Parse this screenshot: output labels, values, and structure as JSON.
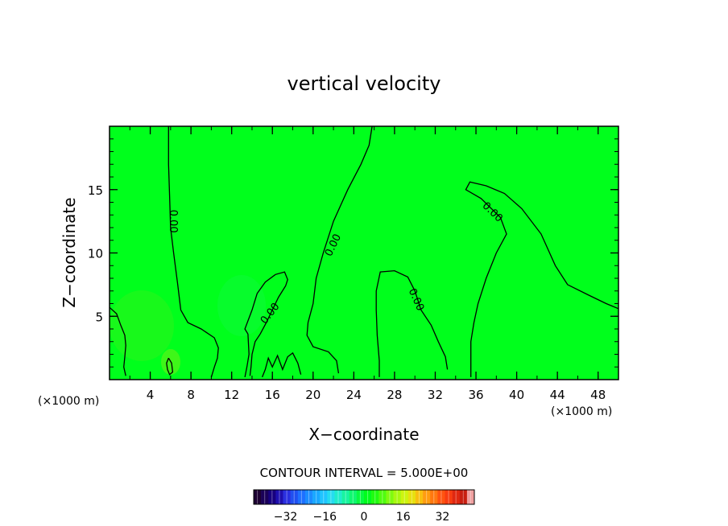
{
  "chart_data": {
    "type": "heatmap",
    "title": "vertical velocity",
    "xlabel": "X−coordinate",
    "ylabel": "Z−coordinate",
    "x_unit_left": "(×1000 m)",
    "x_unit_right": "(×1000 m)",
    "xlim": [
      0,
      50
    ],
    "ylim": [
      0,
      20
    ],
    "x_ticks": [
      4,
      8,
      12,
      16,
      20,
      24,
      28,
      32,
      36,
      40,
      44,
      48
    ],
    "y_ticks": [
      5,
      10,
      15
    ],
    "field_background_color": "#00ff1c",
    "contour_value_label": "0.00",
    "contours": [
      {
        "name": "c1",
        "points": [
          [
            5.8,
            20
          ],
          [
            5.8,
            17
          ],
          [
            5.9,
            14.5
          ],
          [
            6.0,
            12
          ],
          [
            6.3,
            10
          ],
          [
            6.7,
            7.5
          ],
          [
            7.0,
            5.5
          ],
          [
            7.7,
            4.5
          ],
          [
            9.0,
            4.0
          ],
          [
            10.3,
            3.3
          ],
          [
            10.7,
            2.5
          ],
          [
            10.6,
            1.7
          ],
          [
            10.3,
            1.0
          ],
          [
            10.0,
            0.2
          ]
        ]
      },
      {
        "name": "c2",
        "points": [
          [
            13.3,
            0.2
          ],
          [
            13.5,
            1.0
          ],
          [
            13.7,
            2.0
          ],
          [
            13.6,
            3.6
          ],
          [
            13.3,
            4.0
          ],
          [
            14.0,
            5.5
          ],
          [
            14.5,
            6.8
          ],
          [
            15.3,
            7.7
          ],
          [
            16.3,
            8.3
          ],
          [
            17.2,
            8.5
          ],
          [
            17.5,
            7.9
          ],
          [
            17.3,
            7.4
          ],
          [
            16.6,
            6.5
          ],
          [
            16.0,
            5.5
          ],
          [
            15.4,
            4.5
          ],
          [
            14.8,
            3.6
          ],
          [
            14.3,
            3.0
          ],
          [
            14.0,
            2.0
          ],
          [
            13.9,
            1.0
          ],
          [
            13.8,
            0.3
          ]
        ]
      },
      {
        "name": "c3",
        "points": [
          [
            25.8,
            20
          ],
          [
            25.5,
            18.5
          ],
          [
            24.7,
            17
          ],
          [
            23.4,
            15
          ],
          [
            22.0,
            12.5
          ],
          [
            21.0,
            10
          ],
          [
            20.3,
            8
          ],
          [
            20.0,
            6
          ],
          [
            19.5,
            4.5
          ],
          [
            19.4,
            3.5
          ],
          [
            20.0,
            2.6
          ],
          [
            21.5,
            2.2
          ],
          [
            22.3,
            1.5
          ],
          [
            22.5,
            0.5
          ]
        ]
      },
      {
        "name": "c4",
        "points": [
          [
            26.5,
            0.2
          ],
          [
            26.5,
            1.5
          ],
          [
            26.3,
            3.5
          ],
          [
            26.2,
            5.5
          ],
          [
            26.2,
            7.0
          ],
          [
            26.6,
            8.5
          ],
          [
            28.0,
            8.6
          ],
          [
            29.3,
            8.1
          ],
          [
            30.0,
            7.0
          ],
          [
            30.6,
            5.5
          ],
          [
            31.6,
            4.3
          ],
          [
            32.3,
            3.0
          ],
          [
            33.0,
            1.8
          ],
          [
            33.2,
            0.8
          ]
        ]
      },
      {
        "name": "c5",
        "points": [
          [
            35.5,
            0.2
          ],
          [
            35.5,
            1.5
          ],
          [
            35.5,
            3.0
          ],
          [
            35.8,
            4.5
          ],
          [
            36.2,
            6.0
          ],
          [
            37.0,
            8.0
          ],
          [
            38.0,
            10.0
          ],
          [
            39.0,
            11.5
          ],
          [
            38.4,
            12.8
          ],
          [
            36.5,
            14.3
          ],
          [
            35.0,
            15.0
          ],
          [
            35.4,
            15.6
          ],
          [
            37.0,
            15.3
          ],
          [
            38.8,
            14.7
          ],
          [
            40.5,
            13.5
          ],
          [
            42.4,
            11.5
          ],
          [
            43.8,
            9.0
          ],
          [
            45.0,
            7.5
          ],
          [
            47.0,
            6.7
          ],
          [
            48.8,
            6.0
          ],
          [
            50.0,
            5.6
          ]
        ]
      },
      {
        "name": "c6",
        "points": [
          [
            0,
            5.7
          ],
          [
            0.7,
            5.2
          ],
          [
            1.1,
            4.3
          ],
          [
            1.5,
            3.5
          ],
          [
            1.6,
            2.7
          ],
          [
            1.5,
            1.8
          ],
          [
            1.4,
            1.0
          ],
          [
            1.6,
            0.3
          ]
        ]
      },
      {
        "name": "c7",
        "points": [
          [
            5.8,
            1.7
          ],
          [
            6.1,
            1.3
          ],
          [
            6.2,
            0.6
          ],
          [
            5.9,
            0.4
          ],
          [
            5.7,
            0.8
          ],
          [
            5.6,
            1.3
          ],
          [
            5.8,
            1.7
          ]
        ]
      },
      {
        "name": "c8",
        "points": [
          [
            15.0,
            0.2
          ],
          [
            15.3,
            0.8
          ],
          [
            15.6,
            1.7
          ],
          [
            16.0,
            1.0
          ],
          [
            16.5,
            1.9
          ],
          [
            17.0,
            0.8
          ],
          [
            17.5,
            1.8
          ],
          [
            18.0,
            2.1
          ],
          [
            18.5,
            1.3
          ],
          [
            18.8,
            0.4
          ]
        ]
      }
    ],
    "contour_labels": [
      {
        "x": 6.2,
        "y": 12.5,
        "rotate": 90
      },
      {
        "x": 15.8,
        "y": 5.2,
        "rotate": -52
      },
      {
        "x": 22.0,
        "y": 10.6,
        "rotate": -64
      },
      {
        "x": 30.1,
        "y": 6.3,
        "rotate": 66
      },
      {
        "x": 37.6,
        "y": 13.2,
        "rotate": 44
      }
    ],
    "colorbar": {
      "label": "CONTOUR INTERVAL = 5.000E+00",
      "tick_labels": [
        "−32",
        "−16",
        "0",
        "16",
        "32"
      ],
      "tick_values": [
        -32,
        -16,
        0,
        16,
        32
      ],
      "range": [
        -45,
        45
      ],
      "colors": [
        "#1c0032",
        "#1a0058",
        "#17007f",
        "#1e10b0",
        "#2a30e0",
        "#2050f0",
        "#1e70ff",
        "#1c8cff",
        "#1aa8ff",
        "#20c4ff",
        "#25dcf0",
        "#20eccc",
        "#18f4a0",
        "#10f870",
        "#08fa40",
        "#00fc1c",
        "#20fc10",
        "#50fc10",
        "#80fa10",
        "#a8f810",
        "#cdf410",
        "#e8e010",
        "#f8c010",
        "#ff9c10",
        "#ff7810",
        "#ff5410",
        "#f83c10",
        "#e02810",
        "#c81e10",
        "#f0a0a0"
      ]
    }
  }
}
